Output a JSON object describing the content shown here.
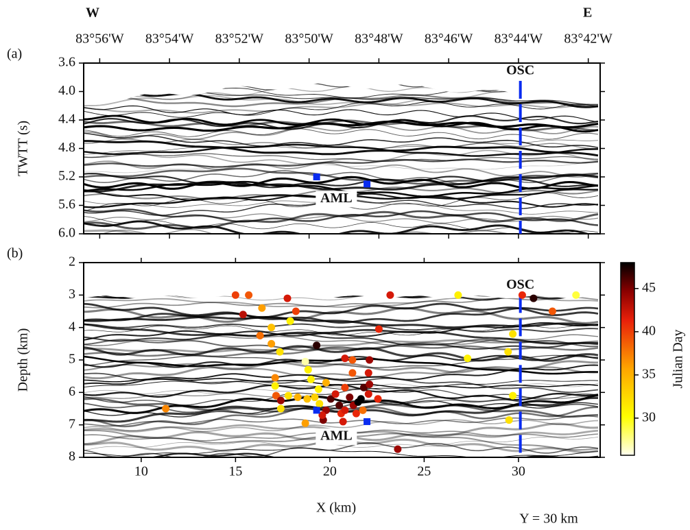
{
  "header": {
    "west": "W",
    "east": "E",
    "x_label": "X (km)",
    "y_note": "Y = 30 km"
  },
  "chart_data": [
    {
      "type": "scatter",
      "panel_label": "(a)",
      "y_label": "TWTT (s)",
      "xlim": [
        6.95,
        34.33
      ],
      "ylim": [
        3.6,
        6.0
      ],
      "y_inverted": true,
      "yticks": [
        3.6,
        {
          "value": 4,
          "label": "4.0"
        },
        4.4,
        4.8,
        5.2,
        5.6,
        {
          "value": 6,
          "label": "6.0"
        }
      ],
      "x2ticks": [
        {
          "value": 7.8,
          "label": "83°56'W"
        },
        {
          "value": 11.5,
          "label": "83°54'W"
        },
        {
          "value": 15.2,
          "label": "83°52'W"
        },
        {
          "value": 18.9,
          "label": "83°50'W"
        },
        {
          "value": 22.6,
          "label": "83°48'W"
        },
        {
          "value": 26.3,
          "label": "83°46'W"
        },
        {
          "value": 30,
          "label": "83°44'W"
        },
        {
          "value": 33.7,
          "label": "83°42'W"
        }
      ],
      "aml": {
        "label": "AML",
        "color": "#0a2cf0",
        "x": [
          19.3,
          21.97
        ],
        "y": [
          5.2,
          5.3
        ]
      },
      "osc": {
        "label": "OSC",
        "color": "#0a2cf0",
        "x": 30.1,
        "y": [
          3.85,
          6.0
        ]
      }
    },
    {
      "type": "scatter",
      "panel_label": "(b)",
      "y_label": "Depth (km)",
      "xlim": [
        6.95,
        34.33
      ],
      "ylim": [
        2,
        8
      ],
      "y_inverted": true,
      "xticks": [
        10,
        15,
        20,
        25,
        30
      ],
      "yticks": [
        2,
        3,
        4,
        5,
        6,
        7,
        8
      ],
      "aml": {
        "label": "AML",
        "color": "#0a2cf0",
        "x": [
          19.3,
          21.97
        ],
        "y": [
          6.55,
          6.9
        ]
      },
      "osc": {
        "label": "OSC",
        "color": "#0a2cf0",
        "x": 30.1,
        "y": [
          3.0,
          8.0
        ]
      },
      "events": {
        "x": [
          15.0,
          15.7,
          17.75,
          23.2,
          26.8,
          30.2,
          30.8,
          33.05,
          15.4,
          16.4,
          18.2,
          17.9,
          16.9,
          16.3,
          16.9,
          17.35,
          19.3,
          22.6,
          29.7,
          29.45,
          27.3,
          20.8,
          21.2,
          22.1,
          18.7,
          17.1,
          17.1,
          17.15,
          17.4,
          17.4,
          17.8,
          18.85,
          19.0,
          19.4,
          19.8,
          19.2,
          18.8,
          18.3,
          19.45,
          19.8,
          19.65,
          19.6,
          20.05,
          20.3,
          20.5,
          20.6,
          20.8,
          21.05,
          21.25,
          21.4,
          21.65,
          21.5,
          21.8,
          22.05,
          22.1,
          22.05,
          22.55,
          21.75,
          21.2,
          20.8,
          18.7,
          20.7,
          23.6,
          11.3,
          29.7,
          29.5,
          31.8
        ],
        "y": [
          3.0,
          3.0,
          3.1,
          3.0,
          3.0,
          3.0,
          3.1,
          3.0,
          3.6,
          3.4,
          3.5,
          3.8,
          4.0,
          4.25,
          4.5,
          4.75,
          4.55,
          4.05,
          4.2,
          4.75,
          4.95,
          4.95,
          5.0,
          5.0,
          5.05,
          5.55,
          5.8,
          6.1,
          6.25,
          6.5,
          6.1,
          5.3,
          5.6,
          5.9,
          5.7,
          6.15,
          6.2,
          6.15,
          6.35,
          6.55,
          6.85,
          6.7,
          6.2,
          6.05,
          6.4,
          6.65,
          5.85,
          6.15,
          6.4,
          6.65,
          6.2,
          6.3,
          5.85,
          5.4,
          5.75,
          6.05,
          6.2,
          6.55,
          5.4,
          6.55,
          6.95,
          6.9,
          7.75,
          6.5,
          6.1,
          6.85,
          3.5
        ],
        "color_values": [
          40,
          39,
          42,
          42,
          31,
          41,
          47,
          29,
          43,
          36,
          40,
          31,
          34,
          38,
          36,
          32,
          47,
          41,
          32,
          32,
          31,
          42,
          39,
          44,
          27,
          37,
          31,
          39,
          44,
          32,
          32,
          31,
          31,
          31,
          35,
          33,
          34,
          35,
          32,
          44,
          45,
          42,
          46,
          42,
          46,
          41,
          40,
          45,
          44,
          41,
          48,
          48,
          46,
          42,
          44,
          42,
          41,
          38,
          39,
          42,
          36,
          42,
          44,
          37,
          31,
          32,
          39
        ]
      },
      "colorbar": {
        "label": "Julian Day",
        "lim": [
          25.7,
          48
        ],
        "ticks": [
          30,
          35,
          40,
          45
        ]
      }
    }
  ]
}
